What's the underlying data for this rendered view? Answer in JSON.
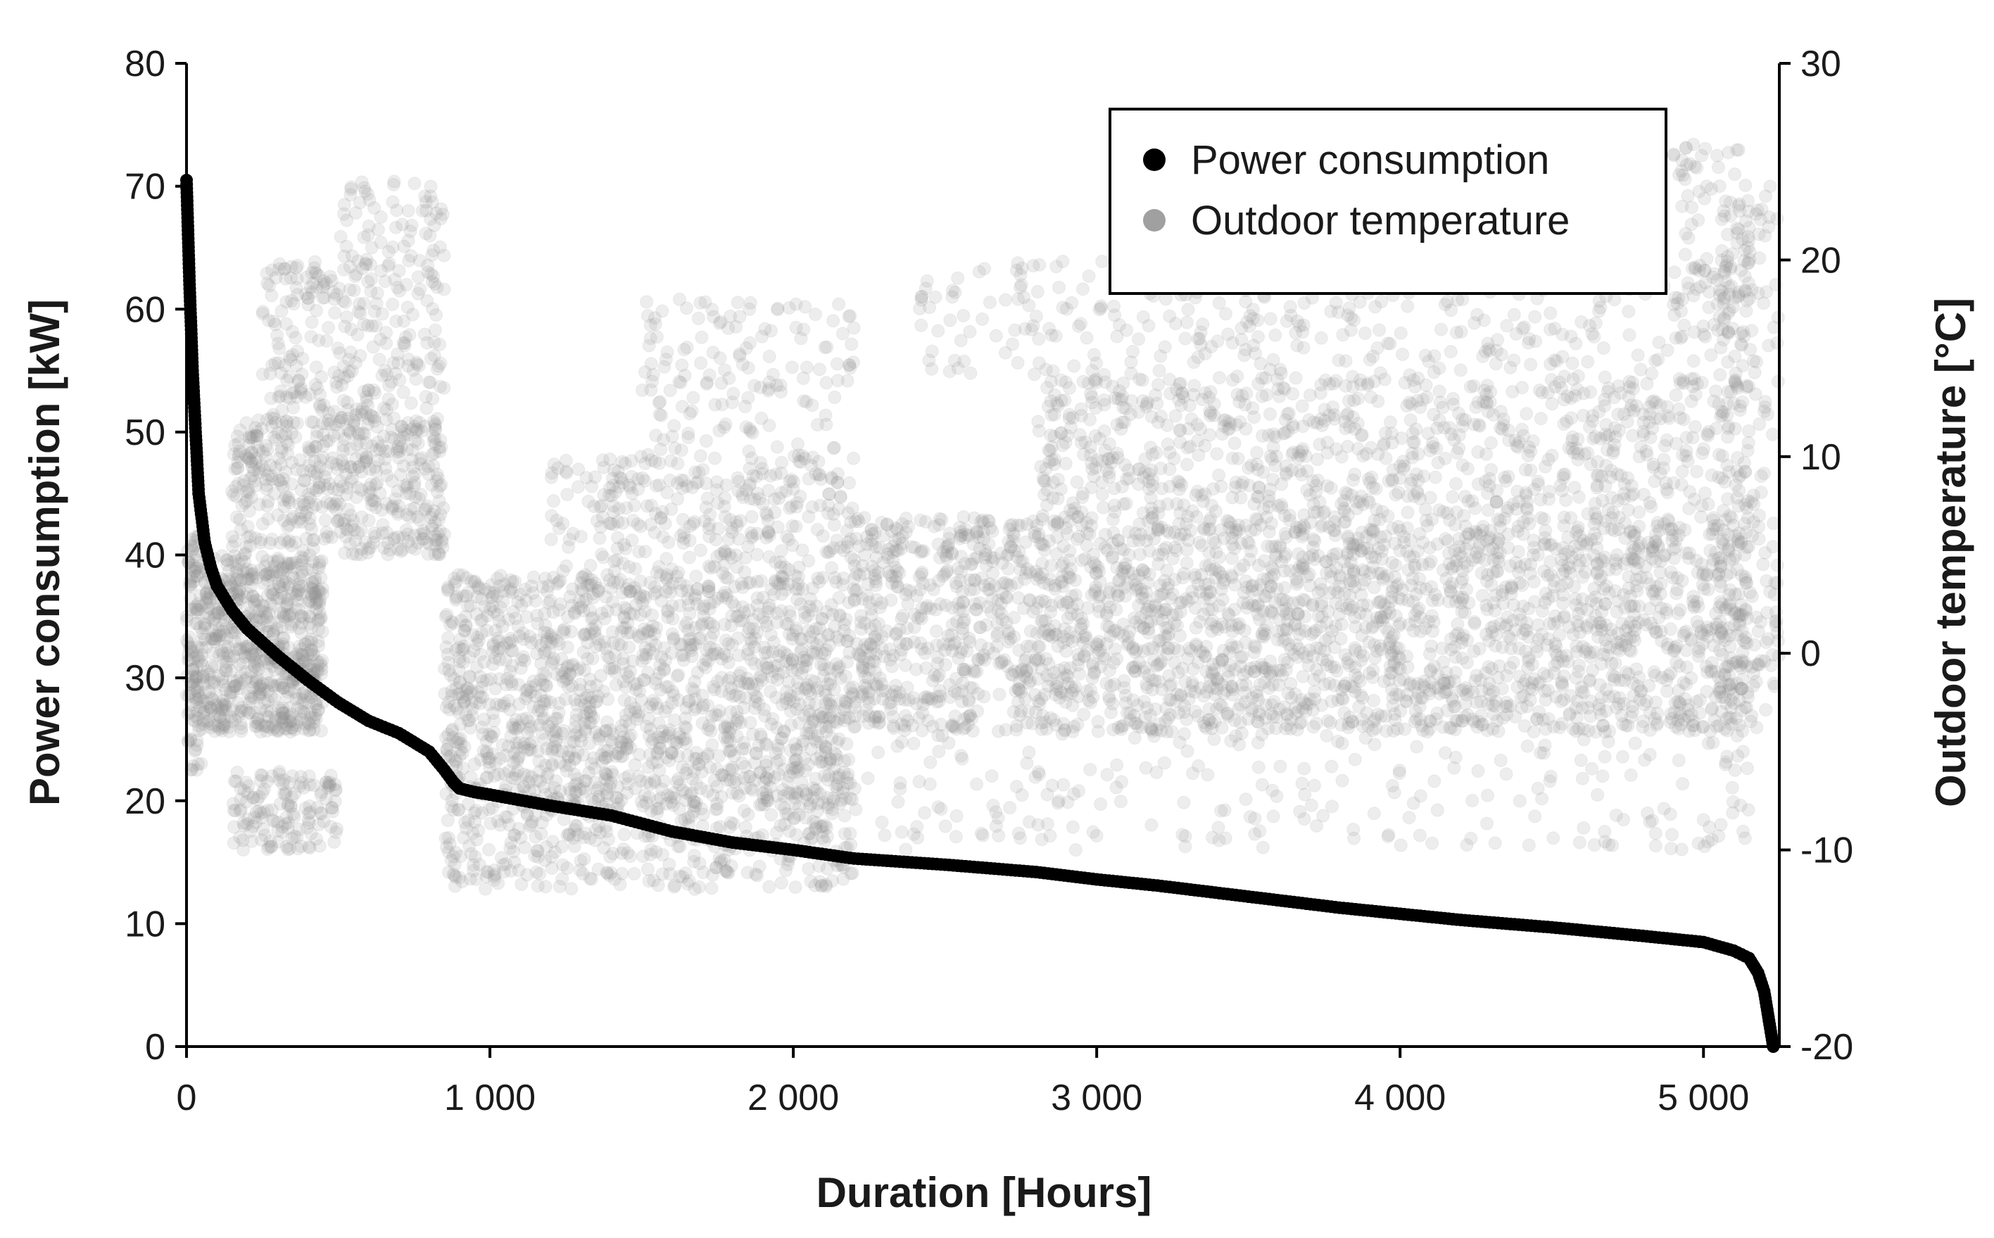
{
  "chart_data": {
    "type": "scatter",
    "title": "",
    "xlabel": "Duration [Hours]",
    "ylabel": "Power consumption [kW]",
    "y2label": "Outdoor temperature [°C]",
    "xlim": [
      0,
      5250
    ],
    "ylim": [
      0,
      80
    ],
    "y2lim": [
      -20,
      30
    ],
    "x_ticks": [
      0,
      1000,
      2000,
      3000,
      4000,
      5000
    ],
    "x_tick_labels": [
      "0",
      "1 000",
      "2 000",
      "3 000",
      "4 000",
      "5 000"
    ],
    "y_ticks": [
      0,
      10,
      20,
      30,
      40,
      50,
      60,
      70,
      80
    ],
    "y_tick_labels": [
      "0",
      "10",
      "20",
      "30",
      "40",
      "50",
      "60",
      "70",
      "80"
    ],
    "y2_ticks": [
      -20,
      -10,
      0,
      10,
      20,
      30
    ],
    "y2_tick_labels": [
      "-20",
      "-10",
      "0",
      "10",
      "20",
      "30"
    ],
    "grid": false,
    "legend_position": "top-right",
    "series": [
      {
        "name": "Power consumption",
        "axis": "left",
        "color": "#000000",
        "x": [
          0,
          10,
          20,
          30,
          40,
          60,
          80,
          100,
          150,
          200,
          300,
          400,
          500,
          600,
          700,
          800,
          850,
          880,
          900,
          950,
          1000,
          1200,
          1400,
          1600,
          1800,
          2000,
          2200,
          2500,
          2800,
          3000,
          3200,
          3500,
          3800,
          4000,
          4200,
          4500,
          4800,
          5000,
          5100,
          5150,
          5180,
          5200,
          5210,
          5220,
          5230
        ],
        "values": [
          70.5,
          62,
          55,
          50,
          45,
          41,
          39,
          37.5,
          35.5,
          34,
          31.8,
          29.8,
          28,
          26.5,
          25.5,
          24,
          22.5,
          21.5,
          21,
          20.7,
          20.5,
          19.6,
          18.8,
          17.5,
          16.6,
          16,
          15.3,
          14.8,
          14.2,
          13.6,
          13.1,
          12.2,
          11.3,
          10.8,
          10.3,
          9.7,
          9,
          8.5,
          7.8,
          7.2,
          6,
          4.5,
          3,
          1.5,
          0
        ]
      },
      {
        "name": "Outdoor temperature",
        "axis": "right",
        "color": "#8f8f8f",
        "point_density": [
          {
            "x": [
              0,
              50
            ],
            "temp_range": [
              -6,
              6
            ],
            "count": 120
          },
          {
            "x": [
              50,
              450
            ],
            "temp_range": [
              -4,
              5
            ],
            "count": 700
          },
          {
            "x": [
              150,
              500
            ],
            "temp_range": [
              -10,
              -6
            ],
            "count": 140
          },
          {
            "x": [
              150,
              850
            ],
            "temp_range": [
              5,
              12
            ],
            "count": 500
          },
          {
            "x": [
              250,
              850
            ],
            "temp_range": [
              12,
              20
            ],
            "count": 260
          },
          {
            "x": [
              500,
              850
            ],
            "temp_range": [
              20,
              24
            ],
            "count": 60
          },
          {
            "x": [
              850,
              2200
            ],
            "temp_range": [
              -12,
              -8
            ],
            "count": 300
          },
          {
            "x": [
              850,
              2200
            ],
            "temp_range": [
              -8,
              4
            ],
            "count": 1500
          },
          {
            "x": [
              1200,
              2200
            ],
            "temp_range": [
              4,
              10
            ],
            "count": 300
          },
          {
            "x": [
              1500,
              2200
            ],
            "temp_range": [
              10,
              18
            ],
            "count": 150
          },
          {
            "x": [
              2200,
              5150
            ],
            "temp_range": [
              -4,
              7
            ],
            "count": 2600
          },
          {
            "x": [
              2800,
              5150
            ],
            "temp_range": [
              7,
              14
            ],
            "count": 800
          },
          {
            "x": [
              2400,
              5150
            ],
            "temp_range": [
              14,
              20
            ],
            "count": 350
          },
          {
            "x": [
              2000,
              5150
            ],
            "temp_range": [
              -10,
              -4
            ],
            "count": 250
          },
          {
            "x": [
              5050,
              5250
            ],
            "temp_range": [
              -4,
              24
            ],
            "count": 200
          },
          {
            "x": [
              4900,
              5150
            ],
            "temp_range": [
              16,
              26
            ],
            "count": 80
          }
        ]
      }
    ]
  }
}
